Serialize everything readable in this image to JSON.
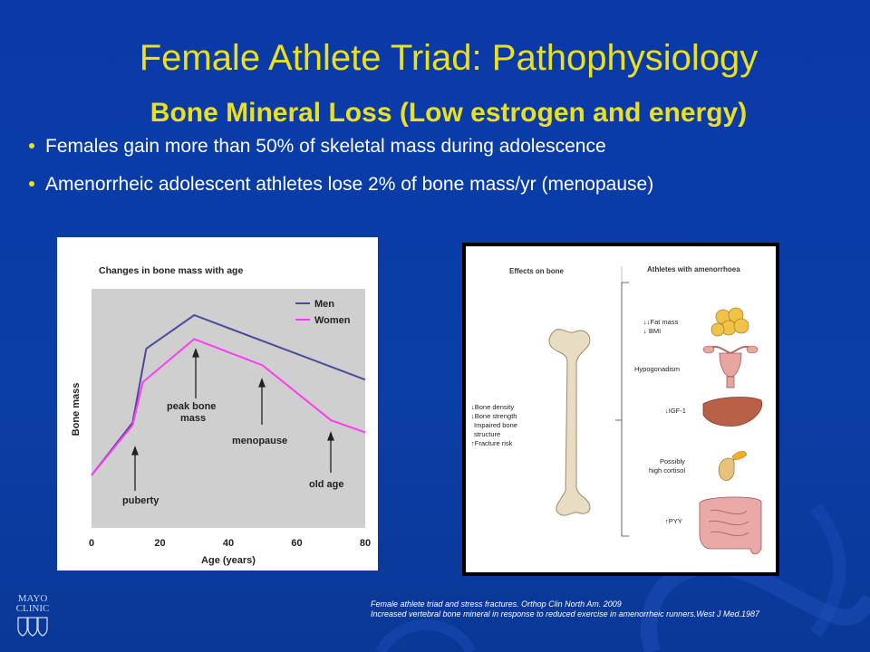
{
  "slide": {
    "title": "Female Athlete Triad: Pathophysiology",
    "subtitle": "Bone Mineral Loss (Low estrogen and energy)",
    "bullets": [
      "Females gain more than 50% of skeletal mass during adolescence",
      "Amenorrheic adolescent athletes lose 2% of bone mass/yr (menopause)"
    ]
  },
  "colors": {
    "background": "#0b3ea6",
    "title": "#e8e020",
    "men_line": "#4b4b9e",
    "women_line": "#ff3cf0"
  },
  "bone_chart": {
    "title": "Changes in bone mass with age",
    "xlabel": "Age (years)",
    "ylabel": "Bone mass",
    "legend": [
      "Men",
      "Women"
    ],
    "xticks": [
      "0",
      "20",
      "40",
      "60",
      "80"
    ],
    "annotations": {
      "puberty": "puberty",
      "peak_line1": "peak bone",
      "peak_line2": "mass",
      "menopause": "menopause",
      "old_age": "old age"
    }
  },
  "chart_data": {
    "type": "line",
    "title": "Changes in bone mass with age",
    "xlabel": "Age (years)",
    "ylabel": "Bone mass",
    "xlim": [
      0,
      80
    ],
    "ylim": [
      0,
      100
    ],
    "legend_position": "top-right",
    "series": [
      {
        "name": "Men",
        "x": [
          0,
          12,
          16,
          30,
          80
        ],
        "y": [
          22,
          44,
          75,
          89,
          62
        ]
      },
      {
        "name": "Women",
        "x": [
          0,
          12,
          15,
          30,
          50,
          70,
          80
        ],
        "y": [
          22,
          43,
          61,
          79,
          68,
          45,
          40
        ]
      }
    ]
  },
  "effects_diagram": {
    "left_header": "Effects on bone",
    "right_header": "Athletes with amenorrhoea",
    "bone_effects": [
      "↓Bone density",
      "↓Bone strength",
      "Impaired bone",
      "structure",
      "↑Fracture risk"
    ],
    "factors": {
      "fat_line1": "↓↓Fat mass",
      "fat_line2": "↓ BMI",
      "hypogonadism": "Hypogonadism",
      "igf": "↓IGF-1",
      "cortisol_line1": "Possibly",
      "cortisol_line2": "high cortisol",
      "pyy": "↑PYY"
    }
  },
  "references": [
    "Female athlete triad and stress fractures. Orthop Clin North Am. 2009",
    "Increased vertebral bone mineral in response to reduced exercise in amenorrheic runners.West J Med.1987"
  ],
  "logo": {
    "line1": "MAYO",
    "line2": "CLINIC"
  }
}
